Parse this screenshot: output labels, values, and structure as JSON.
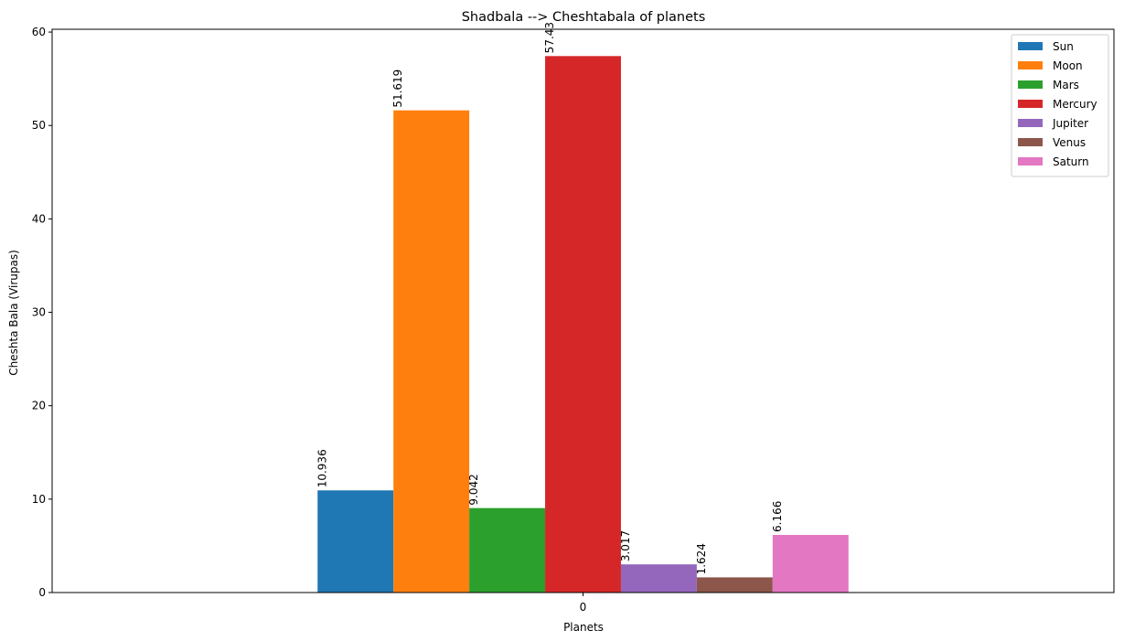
{
  "chart_data": {
    "type": "bar",
    "title": "Shadbala --> Cheshtabala of planets",
    "xlabel": "Planets",
    "ylabel": "Cheshta Bala (Virupas)",
    "categories": [
      "0"
    ],
    "ylim": [
      0,
      60.3
    ],
    "yticks": [
      0,
      10,
      20,
      30,
      40,
      50,
      60
    ],
    "grid": false,
    "legend_position": "top-right",
    "series": [
      {
        "name": "Sun",
        "values": [
          10.936
        ],
        "label": "10.936",
        "color": "#1f77b4"
      },
      {
        "name": "Moon",
        "values": [
          51.619
        ],
        "label": "51.619",
        "color": "#ff7f0e"
      },
      {
        "name": "Mars",
        "values": [
          9.042
        ],
        "label": "9.042",
        "color": "#2ca02c"
      },
      {
        "name": "Mercury",
        "values": [
          57.43
        ],
        "label": "57.43",
        "color": "#d62728"
      },
      {
        "name": "Jupiter",
        "values": [
          3.017
        ],
        "label": "3.017",
        "color": "#9467bd"
      },
      {
        "name": "Venus",
        "values": [
          1.624
        ],
        "label": "1.624",
        "color": "#8c564b"
      },
      {
        "name": "Saturn",
        "values": [
          6.166
        ],
        "label": "6.166",
        "color": "#e377c2"
      }
    ]
  }
}
